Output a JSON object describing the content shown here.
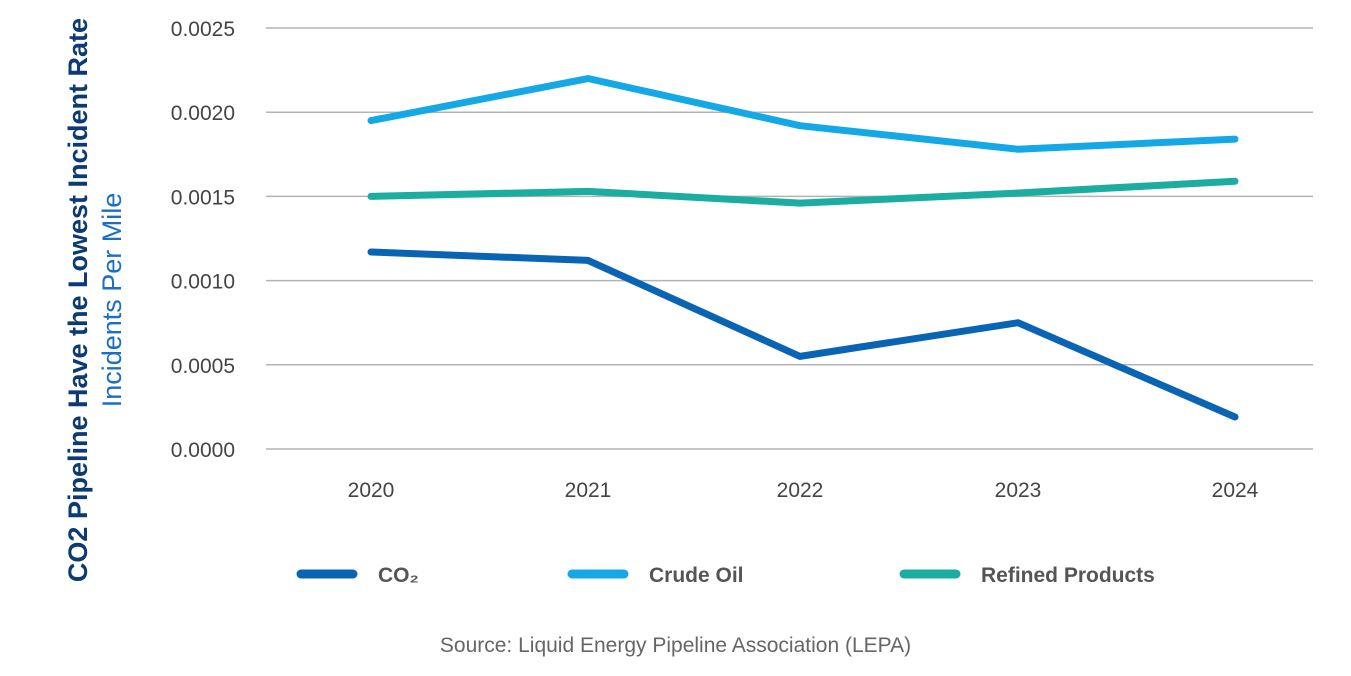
{
  "chart_data": {
    "type": "line",
    "title": "CO2 Pipeline Have the Lowest Incident Rate",
    "ylabel": "Incidents Per Mile",
    "categories": [
      "2020",
      "2021",
      "2022",
      "2023",
      "2024"
    ],
    "ylim": [
      0,
      0.0025
    ],
    "yticks": [
      "0.0000",
      "0.0005",
      "0.0010",
      "0.0015",
      "0.0020",
      "0.0025"
    ],
    "grid": true,
    "legend_position": "bottom",
    "series": [
      {
        "name": "CO₂",
        "color": "#0a64b4",
        "values": [
          0.00117,
          0.00112,
          0.00055,
          0.00075,
          0.00019
        ]
      },
      {
        "name": "Crude Oil",
        "color": "#14a9e6",
        "values": [
          0.00195,
          0.0022,
          0.00192,
          0.00178,
          0.00184
        ]
      },
      {
        "name": "Refined Products",
        "color": "#1aada0",
        "values": [
          0.0015,
          0.00153,
          0.00146,
          0.00152,
          0.00159
        ]
      }
    ],
    "source": "Source: Liquid Energy Pipeline Association (LEPA)"
  }
}
